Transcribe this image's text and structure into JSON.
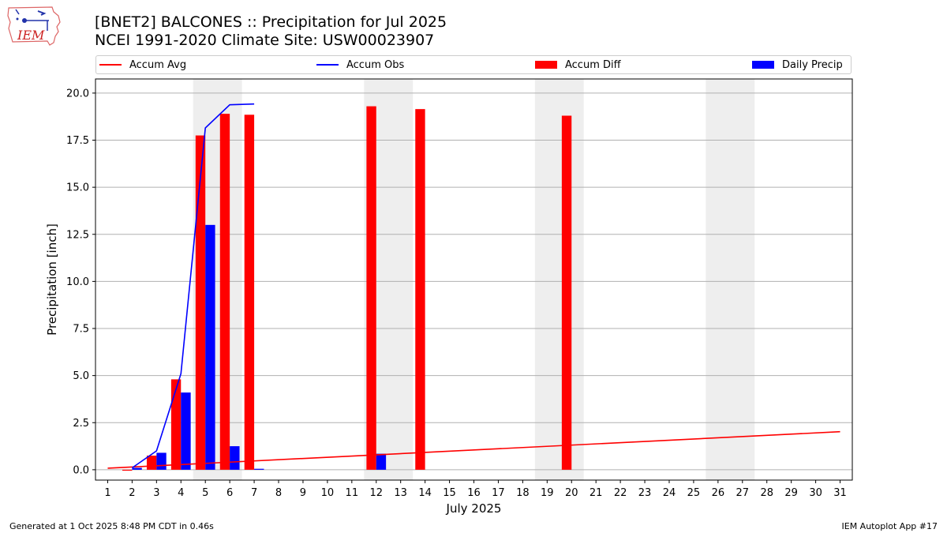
{
  "header": {
    "title": "[BNET2] BALCONES :: Precipitation for Jul 2025",
    "subtitle": "NCEI 1991-2020 Climate Site: USW00023907"
  },
  "logo": {
    "text": "IEM",
    "icon": "iem-iowa-logo-icon"
  },
  "legend": {
    "items": [
      {
        "label": "Accum Avg",
        "kind": "line",
        "color": "#ff0000"
      },
      {
        "label": "Accum Obs",
        "kind": "line",
        "color": "#0000ff"
      },
      {
        "label": "Accum Diff",
        "kind": "bar",
        "color": "#ff0000"
      },
      {
        "label": "Daily Precip",
        "kind": "bar",
        "color": "#0000ff"
      }
    ]
  },
  "footer": {
    "left": "Generated at 1 Oct 2025 8:48 PM CDT in 0.46s",
    "right": "IEM Autoplot App #17"
  },
  "chart_data": {
    "type": "bar",
    "xlabel": "July 2025",
    "ylabel": "Precipitation [inch]",
    "xlim": [
      0.5,
      31.5
    ],
    "ylim": [
      -0.55,
      20.75
    ],
    "yticks": [
      0.0,
      2.5,
      5.0,
      7.5,
      10.0,
      12.5,
      15.0,
      17.5,
      20.0
    ],
    "ytick_labels": [
      "0.0",
      "2.5",
      "5.0",
      "7.5",
      "10.0",
      "12.5",
      "15.0",
      "17.5",
      "20.0"
    ],
    "categories": [
      "1",
      "2",
      "3",
      "4",
      "5",
      "6",
      "7",
      "8",
      "9",
      "10",
      "11",
      "12",
      "13",
      "14",
      "15",
      "16",
      "17",
      "18",
      "19",
      "20",
      "21",
      "22",
      "23",
      "24",
      "25",
      "26",
      "27",
      "28",
      "29",
      "30",
      "31"
    ],
    "grid": "horizontal",
    "legend_position": "top",
    "weekend_shading": [
      [
        4.5,
        6.5
      ],
      [
        11.5,
        13.5
      ],
      [
        18.5,
        20.5
      ],
      [
        25.5,
        27.5
      ]
    ],
    "series": [
      {
        "name": "Accum Diff",
        "type": "bar",
        "color": "#ff0000",
        "values": [
          0,
          -0.05,
          0.75,
          4.8,
          17.75,
          18.9,
          18.85,
          null,
          null,
          null,
          null,
          19.3,
          null,
          19.15,
          null,
          null,
          null,
          null,
          null,
          18.8,
          null,
          null,
          null,
          null,
          null,
          null,
          null,
          null,
          null,
          null,
          null
        ]
      },
      {
        "name": "Daily Precip",
        "type": "bar",
        "color": "#0000ff",
        "values": [
          0,
          0.1,
          0.9,
          4.1,
          13.0,
          1.25,
          0.05,
          null,
          null,
          null,
          null,
          0.85,
          null,
          null,
          null,
          null,
          null,
          null,
          null,
          null,
          null,
          null,
          null,
          null,
          null,
          null,
          null,
          null,
          null,
          null,
          null
        ]
      },
      {
        "name": "Accum Obs",
        "type": "line",
        "color": "#0000ff",
        "x": [
          2,
          3,
          4,
          5,
          6,
          7
        ],
        "values": [
          0.1,
          1.0,
          5.1,
          18.15,
          19.38,
          19.42
        ]
      },
      {
        "name": "Accum Avg",
        "type": "line",
        "color": "#ff0000",
        "x": [
          1,
          31
        ],
        "values": [
          0.08,
          2.02
        ]
      }
    ]
  }
}
